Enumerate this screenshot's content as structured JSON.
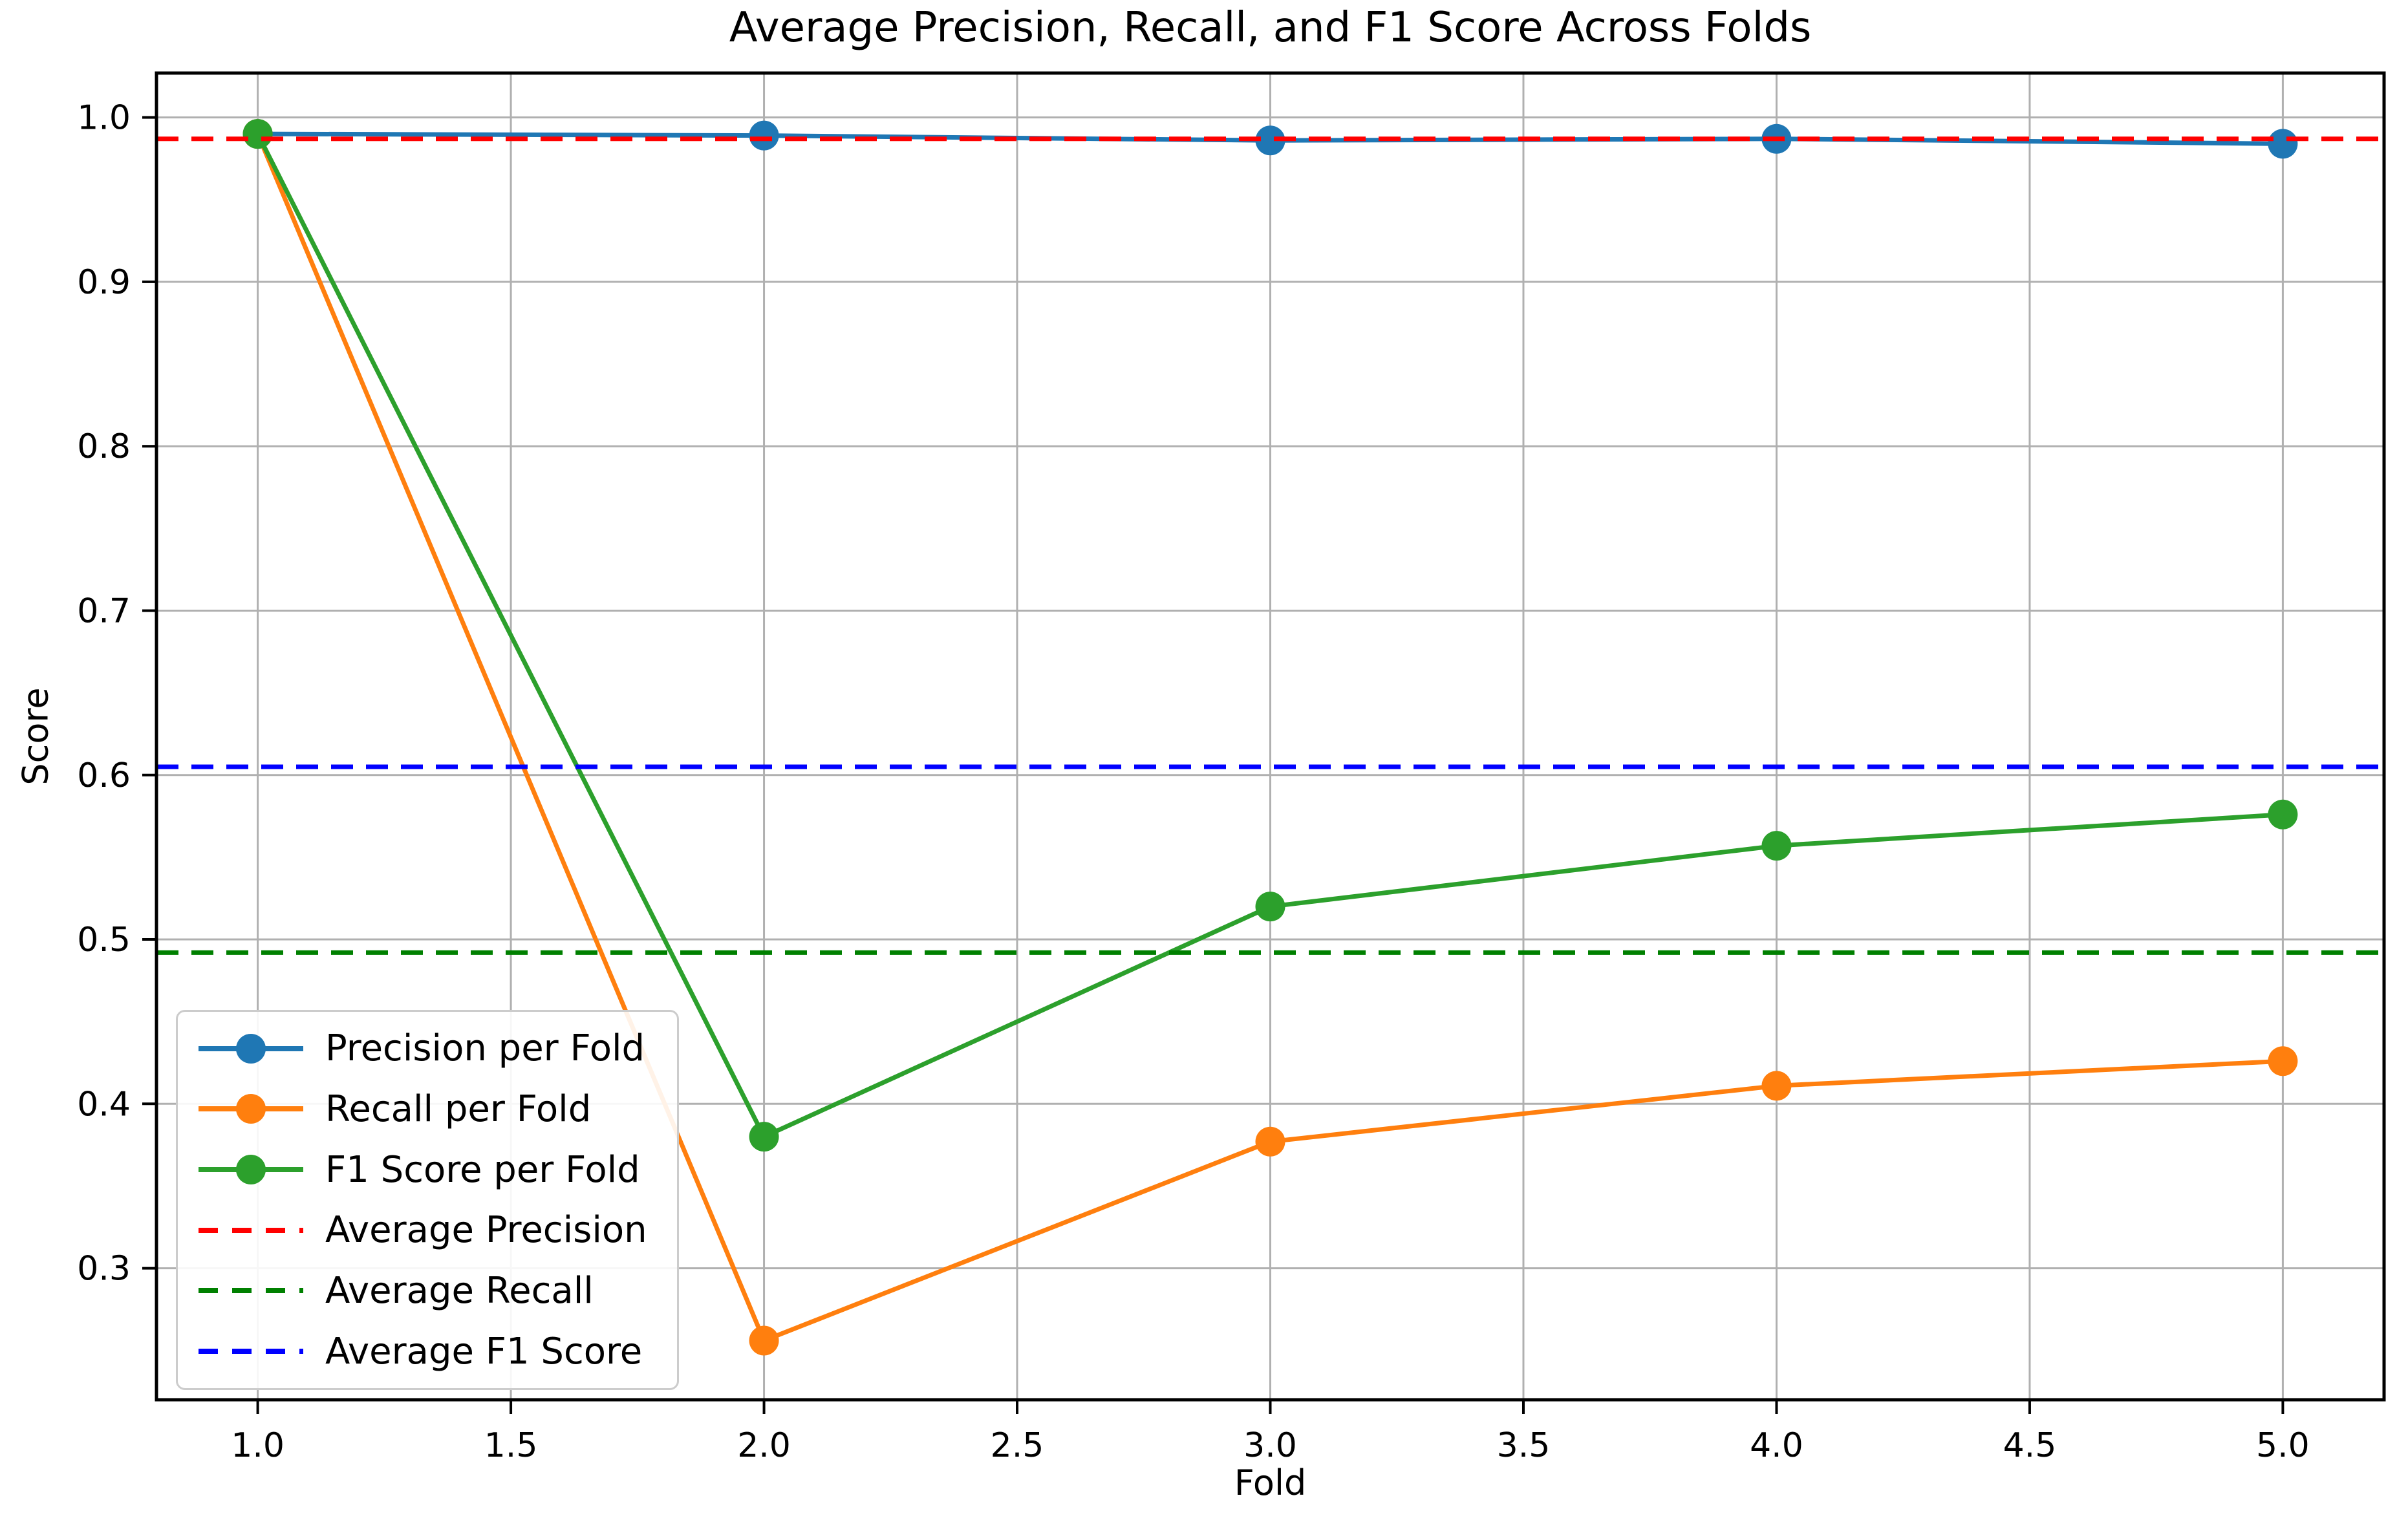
{
  "figure": {
    "background": "#ffffff"
  },
  "chart_data": {
    "type": "line",
    "title": "Average Precision, Recall, and F1 Score Across Folds",
    "xlabel": "Fold",
    "ylabel": "Score",
    "x": [
      1,
      2,
      3,
      4,
      5
    ],
    "xticks": [
      "1.0",
      "1.5",
      "2.0",
      "2.5",
      "3.0",
      "3.5",
      "4.0",
      "4.5",
      "5.0"
    ],
    "yticks": [
      "0.3",
      "0.4",
      "0.5",
      "0.6",
      "0.7",
      "0.8",
      "0.9",
      "1.0"
    ],
    "xlim": [
      0.8,
      5.2
    ],
    "ylim": [
      0.22,
      1.027
    ],
    "grid": true,
    "grid_color": "#b0b0b0",
    "axis_color": "#000000",
    "legend_position": "lower left",
    "series": [
      {
        "name": "Precision per Fold",
        "style": "solid-marker",
        "color": "#1f77b4",
        "values": [
          0.99,
          0.989,
          0.986,
          0.987,
          0.984
        ]
      },
      {
        "name": "Recall per Fold",
        "style": "solid-marker",
        "color": "#ff7f0e",
        "values": [
          0.99,
          0.256,
          0.377,
          0.411,
          0.426
        ]
      },
      {
        "name": "F1 Score per Fold",
        "style": "solid-marker",
        "color": "#2ca02c",
        "values": [
          0.99,
          0.38,
          0.52,
          0.557,
          0.576
        ]
      },
      {
        "name": "Average Precision",
        "style": "dashed-hline",
        "color": "#ff0000",
        "value": 0.987
      },
      {
        "name": "Average Recall",
        "style": "dashed-hline",
        "color": "#008000",
        "value": 0.492
      },
      {
        "name": "Average F1 Score",
        "style": "dashed-hline",
        "color": "#0000ff",
        "value": 0.605
      }
    ]
  }
}
